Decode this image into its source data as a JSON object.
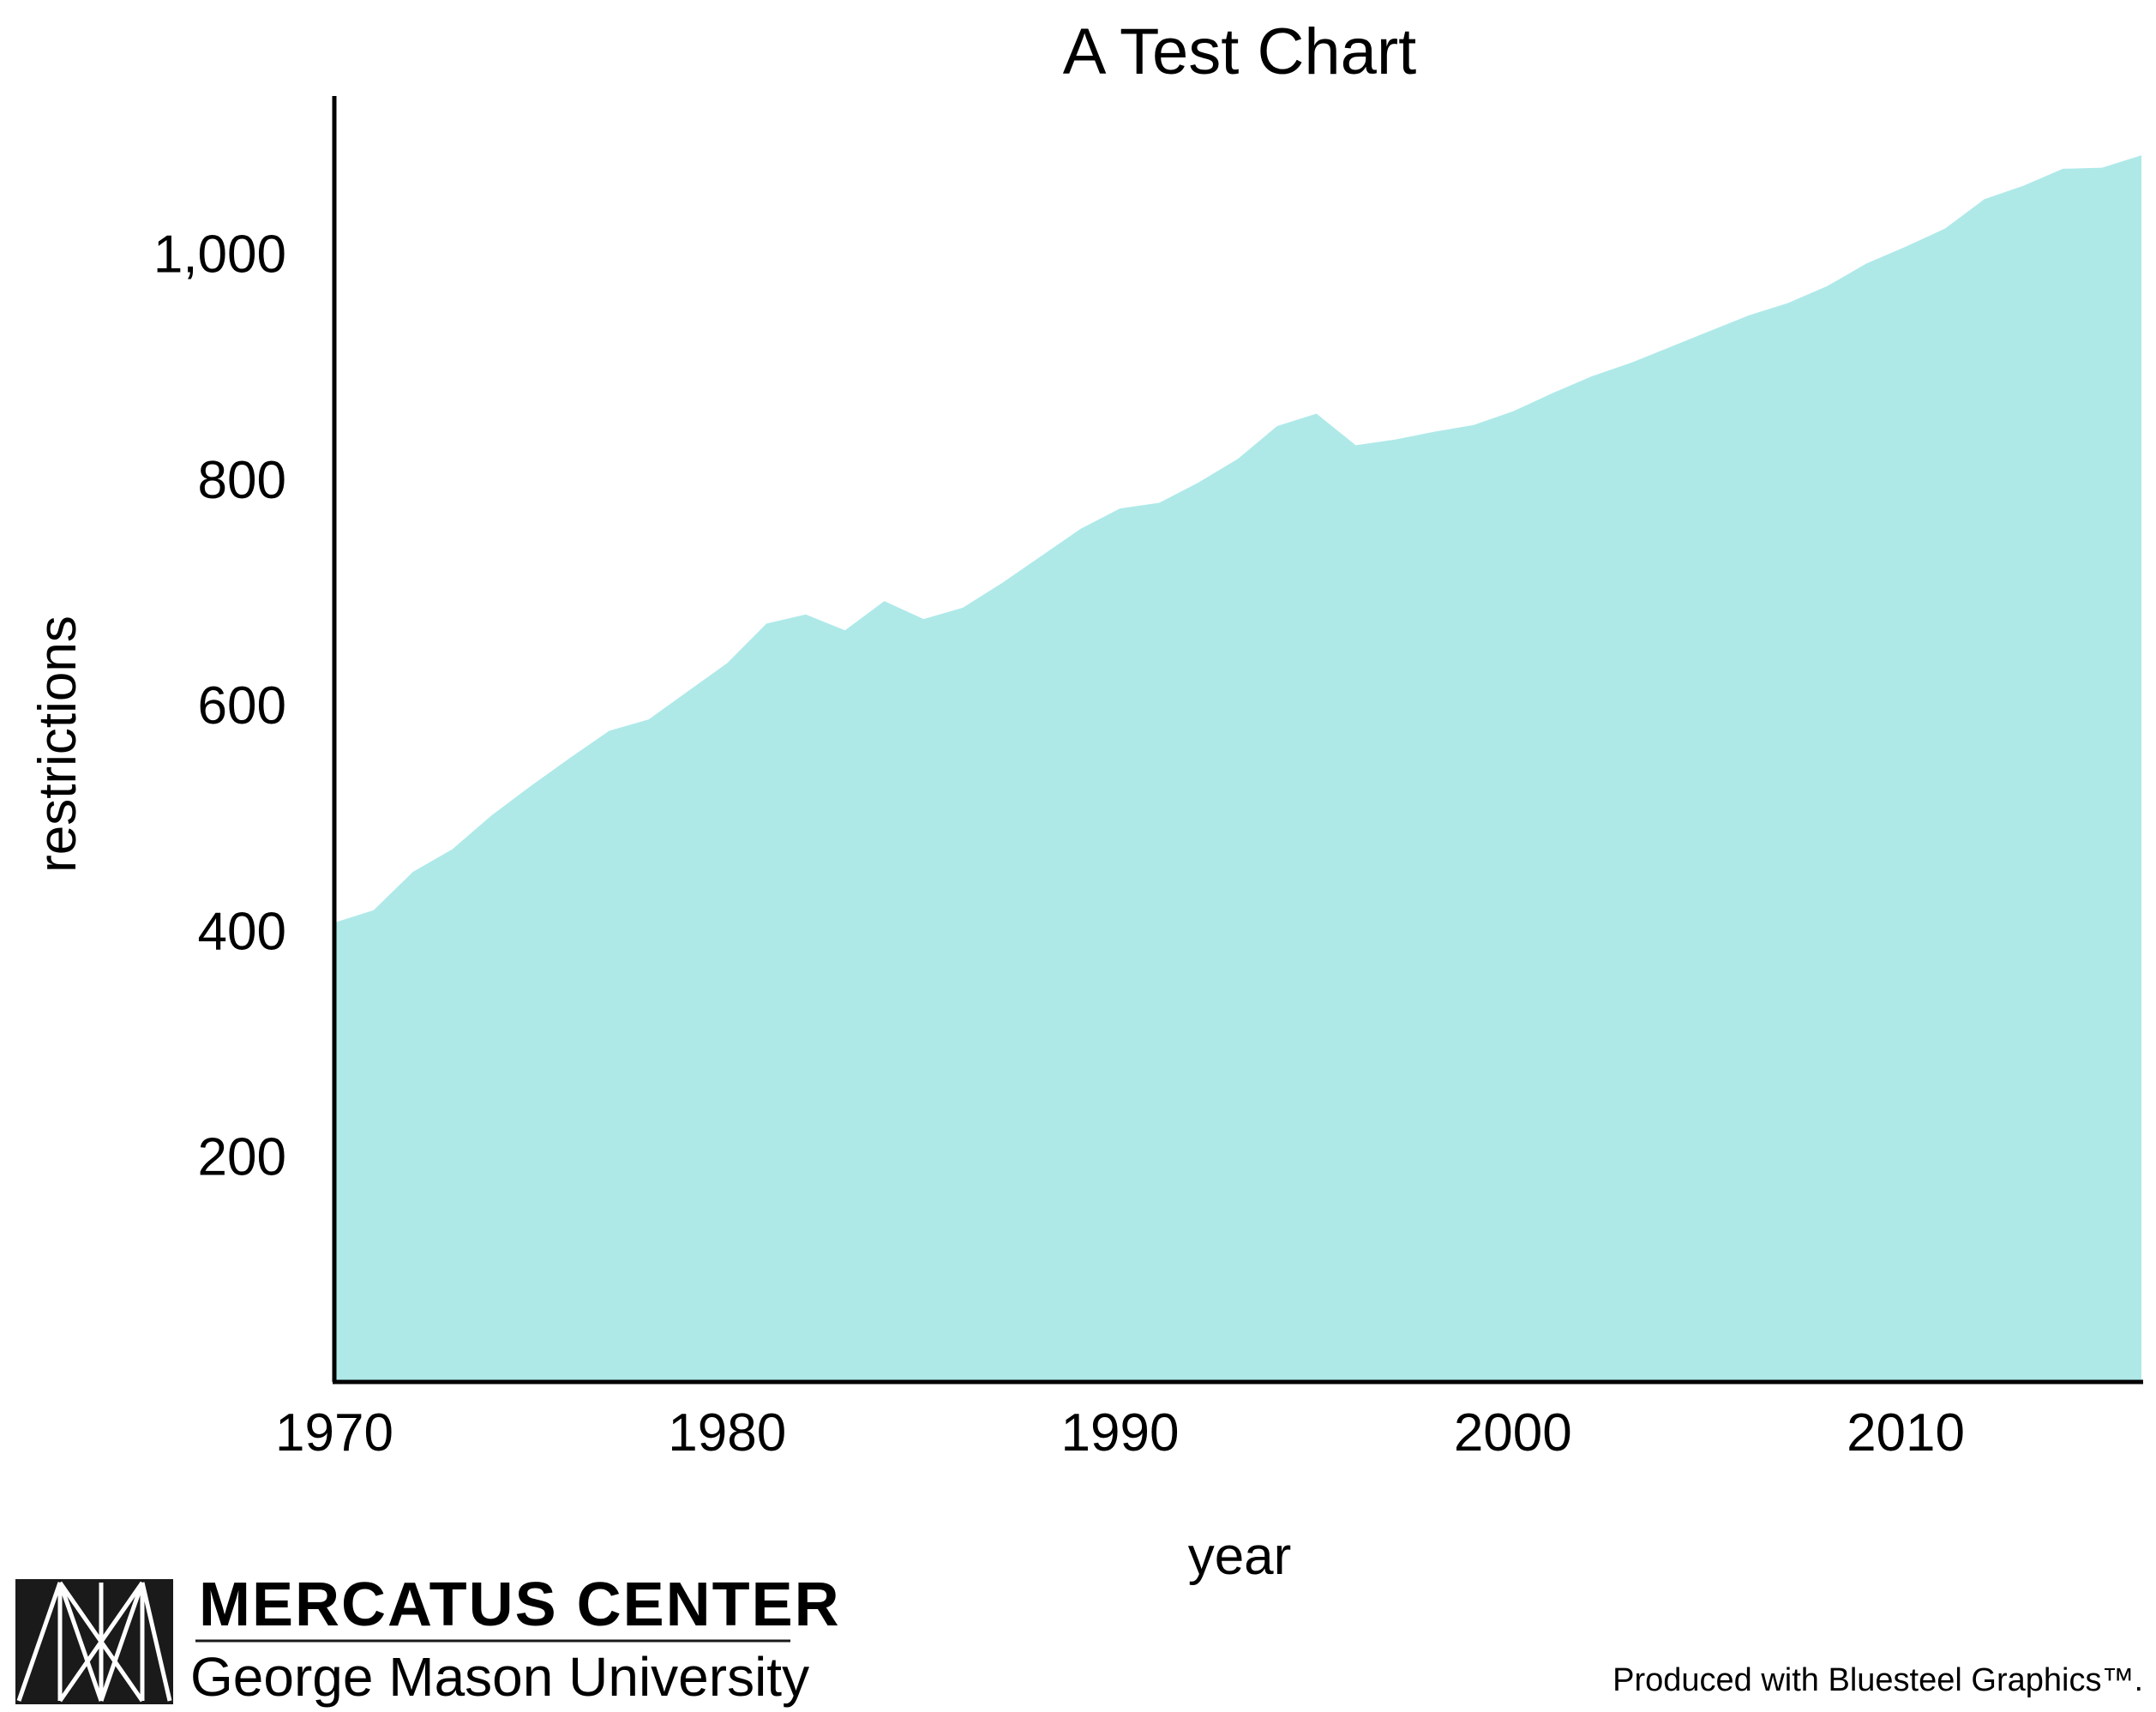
{
  "chart_data": {
    "type": "area",
    "title": "A Test Chart",
    "xlabel": "year",
    "ylabel": "restrictions",
    "xlim": [
      1970,
      2016
    ],
    "ylim": [
      0,
      1140
    ],
    "x_ticks": [
      1970,
      1980,
      1990,
      2000,
      2010
    ],
    "x_tick_labels": [
      "1970",
      "1980",
      "1990",
      "2000",
      "2010"
    ],
    "y_ticks": [
      200,
      400,
      600,
      800,
      1000
    ],
    "y_tick_labels": [
      "200",
      "400",
      "600",
      "800",
      "1,000"
    ],
    "grid": false,
    "fill_color": "#aee9e8",
    "series": [
      {
        "x": [
          1970,
          1971,
          1972,
          1973,
          1974,
          1975,
          1976,
          1977,
          1978,
          1979,
          1980,
          1981,
          1982,
          1983,
          1984,
          1985,
          1986,
          1987,
          1988,
          1989,
          1990,
          1991,
          1992,
          1993,
          1994,
          1995,
          1996,
          1997,
          1998,
          1999,
          2000,
          2001,
          2002,
          2003,
          2004,
          2005,
          2006,
          2007,
          2008,
          2009,
          2010,
          2011,
          2012,
          2013,
          2014,
          2015,
          2016
        ],
        "values": [
          407,
          418,
          452,
          472,
          502,
          528,
          553,
          577,
          587,
          612,
          637,
          672,
          680,
          666,
          692,
          676,
          686,
          708,
          732,
          756,
          774,
          779,
          797,
          818,
          847,
          858,
          830,
          835,
          842,
          848,
          860,
          876,
          891,
          903,
          917,
          931,
          945,
          956,
          971,
          991,
          1006,
          1022,
          1048,
          1060,
          1075,
          1076,
          1087
        ]
      }
    ]
  },
  "branding": {
    "org_name": "MERCATUS CENTER",
    "org_subtitle": "George Mason University",
    "produced_with": "Produced with Bluesteel Graphics™."
  }
}
